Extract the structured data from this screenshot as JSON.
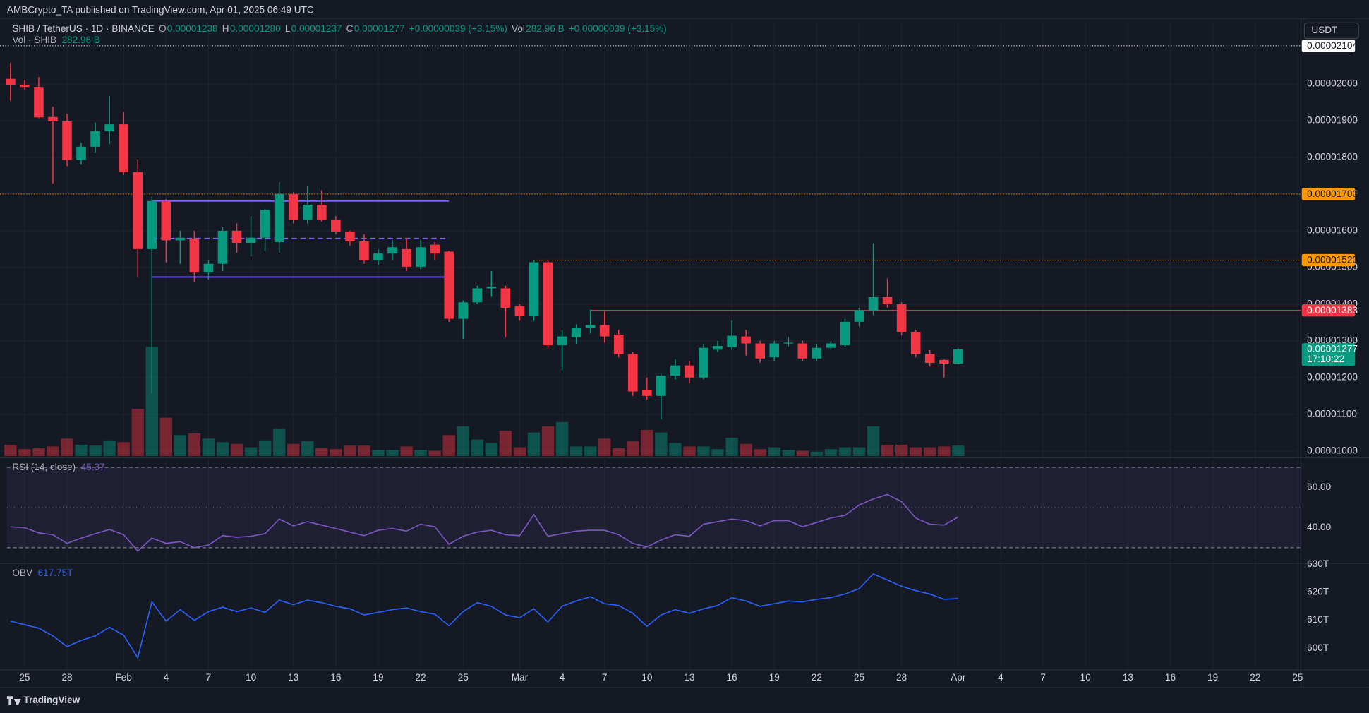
{
  "chart_data": {
    "type": "candlestick",
    "header": "AMBCrypto_TA published on TradingView.com, Apr 01, 2025 06:49 UTC",
    "legend": {
      "name": "SHIB / TetherUS · 1D · BINANCE",
      "parts": [
        {
          "k": "O",
          "v": "0.00001238"
        },
        {
          "k": "H",
          "v": "0.00001280"
        },
        {
          "k": "L",
          "v": "0.00001237"
        },
        {
          "k": "C",
          "v": "0.00001277"
        },
        {
          "v": "+0.00000039 (+3.15%)"
        },
        {
          "k": "Vol",
          "v": "282.96 B"
        },
        {
          "v": "+0.00000039 (+3.15%)"
        }
      ]
    },
    "currency": "USDT",
    "brand": "TradingView",
    "up_color": "#089981",
    "down_color": "#f23645",
    "x": [
      "Jan 24",
      "Jan 25",
      "Jan 26",
      "Jan 27",
      "Jan 28",
      "Jan 29",
      "Jan 30",
      "Jan 31",
      "Feb 1",
      "Feb 2",
      "Feb 3",
      "Feb 4",
      "Feb 5",
      "Feb 6",
      "Feb 7",
      "Feb 8",
      "Feb 9",
      "Feb 10",
      "Feb 11",
      "Feb 12",
      "Feb 13",
      "Feb 14",
      "Feb 15",
      "Feb 16",
      "Feb 17",
      "Feb 18",
      "Feb 19",
      "Feb 20",
      "Feb 21",
      "Feb 22",
      "Feb 23",
      "Feb 24",
      "Feb 25",
      "Feb 26",
      "Feb 27",
      "Feb 28",
      "Mar 1",
      "Mar 2",
      "Mar 3",
      "Mar 4",
      "Mar 5",
      "Mar 6",
      "Mar 7",
      "Mar 8",
      "Mar 9",
      "Mar 10",
      "Mar 11",
      "Mar 12",
      "Mar 13",
      "Mar 14",
      "Mar 15",
      "Mar 16",
      "Mar 17",
      "Mar 18",
      "Mar 19",
      "Mar 20",
      "Mar 21",
      "Mar 22",
      "Mar 23",
      "Mar 24",
      "Mar 25",
      "Mar 26",
      "Mar 27",
      "Mar 28",
      "Mar 29",
      "Mar 30",
      "Mar 31",
      "Apr 1"
    ],
    "open": [
      2.014e-05,
      1.998e-05,
      1.992e-05,
      1.91e-05,
      1.898e-05,
      1.793e-05,
      1.829e-05,
      1.871e-05,
      1.89e-05,
      1.76e-05,
      1.55e-05,
      1.681e-05,
      1.574e-05,
      1.579e-05,
      1.486e-05,
      1.51e-05,
      1.6e-05,
      1.567e-05,
      1.581e-05,
      1.569e-05,
      1.7e-05,
      1.629e-05,
      1.671e-05,
      1.629e-05,
      1.598e-05,
      1.571e-05,
      1.519e-05,
      1.538e-05,
      1.55e-05,
      1.502e-05,
      1.562e-05,
      1.543e-05,
      1.36e-05,
      1.405e-05,
      1.443e-05,
      1.443e-05,
      1.395e-05,
      1.367e-05,
      1.514e-05,
      1.288e-05,
      1.31e-05,
      1.336e-05,
      1.343e-05,
      1.317e-05,
      1.264e-05,
      1.167e-05,
      1.15e-05,
      1.205e-05,
      1.233e-05,
      1.2e-05,
      1.276e-05,
      1.283e-05,
      1.312e-05,
      1.293e-05,
      1.255e-05,
      1.293e-05,
      1.293e-05,
      1.252e-05,
      1.281e-05,
      1.288e-05,
      1.352e-05,
      1.383e-05,
      1.419e-05,
      1.4e-05,
      1.324e-05,
      1.264e-05,
      1.248e-05,
      1.238e-05
    ],
    "high": [
      2.057e-05,
      2.01e-05,
      2.019e-05,
      1.938e-05,
      1.919e-05,
      1.84e-05,
      1.895e-05,
      1.967e-05,
      1.924e-05,
      1.795e-05,
      1.693e-05,
      1.686e-05,
      1.6e-05,
      1.6e-05,
      1.52e-05,
      1.61e-05,
      1.62e-05,
      1.64e-05,
      1.66e-05,
      1.733e-05,
      1.705e-05,
      1.721e-05,
      1.71e-05,
      1.64e-05,
      1.6e-05,
      1.59e-05,
      1.55e-05,
      1.575e-05,
      1.58e-05,
      1.575e-05,
      1.57e-05,
      1.545e-05,
      1.41e-05,
      1.45e-05,
      1.49e-05,
      1.45e-05,
      1.4e-05,
      1.52e-05,
      1.52e-05,
      1.33e-05,
      1.345e-05,
      1.385e-05,
      1.38e-05,
      1.33e-05,
      1.27e-05,
      1.2e-05,
      1.21e-05,
      1.25e-05,
      1.245e-05,
      1.29e-05,
      1.3e-05,
      1.355e-05,
      1.33e-05,
      1.3e-05,
      1.3e-05,
      1.31e-05,
      1.3e-05,
      1.29e-05,
      1.3e-05,
      1.36e-05,
      1.39e-05,
      1.566e-05,
      1.47e-05,
      1.405e-05,
      1.33e-05,
      1.275e-05,
      1.25e-05,
      1.28e-05
    ],
    "low": [
      1.955e-05,
      1.985e-05,
      1.907e-05,
      1.729e-05,
      1.776e-05,
      1.78e-05,
      1.812e-05,
      1.836e-05,
      1.752e-05,
      1.474e-05,
      1.157e-05,
      1.514e-05,
      1.51e-05,
      1.46e-05,
      1.467e-05,
      1.49e-05,
      1.54e-05,
      1.53e-05,
      1.545e-05,
      1.54e-05,
      1.62e-05,
      1.62e-05,
      1.625e-05,
      1.59e-05,
      1.56e-05,
      1.51e-05,
      1.505e-05,
      1.52e-05,
      1.49e-05,
      1.495e-05,
      1.52e-05,
      1.352e-05,
      1.305e-05,
      1.4e-05,
      1.42e-05,
      1.31e-05,
      1.355e-05,
      1.355e-05,
      1.28e-05,
      1.22e-05,
      1.29e-05,
      1.32e-05,
      1.295e-05,
      1.255e-05,
      1.15e-05,
      1.14e-05,
      1.086e-05,
      1.195e-05,
      1.185e-05,
      1.195e-05,
      1.27e-05,
      1.275e-05,
      1.26e-05,
      1.24e-05,
      1.245e-05,
      1.285e-05,
      1.245e-05,
      1.245e-05,
      1.275e-05,
      1.285e-05,
      1.34e-05,
      1.37e-05,
      1.39e-05,
      1.315e-05,
      1.255e-05,
      1.23e-05,
      1.2e-05,
      1.237e-05
    ],
    "close": [
      1.998e-05,
      1.992e-05,
      1.909e-05,
      1.898e-05,
      1.793e-05,
      1.829e-05,
      1.871e-05,
      1.89e-05,
      1.76e-05,
      1.55e-05,
      1.681e-05,
      1.574e-05,
      1.581e-05,
      1.486e-05,
      1.51e-05,
      1.6e-05,
      1.567e-05,
      1.581e-05,
      1.657e-05,
      1.7e-05,
      1.629e-05,
      1.671e-05,
      1.629e-05,
      1.598e-05,
      1.571e-05,
      1.519e-05,
      1.538e-05,
      1.555e-05,
      1.502e-05,
      1.555e-05,
      1.538e-05,
      1.36e-05,
      1.405e-05,
      1.443e-05,
      1.448e-05,
      1.39e-05,
      1.367e-05,
      1.514e-05,
      1.288e-05,
      1.312e-05,
      1.336e-05,
      1.343e-05,
      1.312e-05,
      1.264e-05,
      1.162e-05,
      1.15e-05,
      1.205e-05,
      1.233e-05,
      1.2e-05,
      1.281e-05,
      1.286e-05,
      1.314e-05,
      1.293e-05,
      1.252e-05,
      1.293e-05,
      1.295e-05,
      1.252e-05,
      1.281e-05,
      1.293e-05,
      1.352e-05,
      1.383e-05,
      1.419e-05,
      1.4e-05,
      1.324e-05,
      1.264e-05,
      1.24e-05,
      1.238e-05,
      1.277e-05
    ],
    "xlim": [
      -0.74,
      91.23
    ],
    "xticks": [
      {
        "value": 1,
        "label": "25"
      },
      {
        "value": 4,
        "label": "28"
      },
      {
        "value": 8,
        "label": "Feb"
      },
      {
        "value": 11,
        "label": "4"
      },
      {
        "value": 14,
        "label": "7"
      },
      {
        "value": 17,
        "label": "10"
      },
      {
        "value": 20,
        "label": "13"
      },
      {
        "value": 23,
        "label": "16"
      },
      {
        "value": 26,
        "label": "19"
      },
      {
        "value": 29,
        "label": "22"
      },
      {
        "value": 32,
        "label": "25"
      },
      {
        "value": 36,
        "label": "Mar"
      },
      {
        "value": 39,
        "label": "4"
      },
      {
        "value": 42,
        "label": "7"
      },
      {
        "value": 45,
        "label": "10"
      },
      {
        "value": 48,
        "label": "13"
      },
      {
        "value": 51,
        "label": "16"
      },
      {
        "value": 54,
        "label": "19"
      },
      {
        "value": 57,
        "label": "22"
      },
      {
        "value": 60,
        "label": "25"
      },
      {
        "value": 63,
        "label": "28"
      },
      {
        "value": 67,
        "label": "Apr"
      },
      {
        "value": 70,
        "label": "4"
      },
      {
        "value": 73,
        "label": "7"
      },
      {
        "value": 76,
        "label": "10"
      },
      {
        "value": 79,
        "label": "13"
      },
      {
        "value": 82,
        "label": "16"
      },
      {
        "value": 85,
        "label": "19"
      },
      {
        "value": 88,
        "label": "22"
      },
      {
        "value": 91,
        "label": "25"
      }
    ],
    "ylim": [
      9.86e-06,
      2.169e-05
    ],
    "yticks": [
      {
        "value": 1e-05,
        "label": "0.00001000"
      },
      {
        "value": 1.1e-05,
        "label": "0.00001100"
      },
      {
        "value": 1.2e-05,
        "label": "0.00001200"
      },
      {
        "value": 1.3e-05,
        "label": "0.00001300"
      },
      {
        "value": 1.4e-05,
        "label": "0.00001400"
      },
      {
        "value": 1.5e-05,
        "label": "0.00001500"
      },
      {
        "value": 1.6e-05,
        "label": "0.00001600"
      },
      {
        "value": 1.7e-05,
        "label": "0.00001700"
      },
      {
        "value": 1.8e-05,
        "label": "0.00001800"
      },
      {
        "value": 1.9e-05,
        "label": "0.00001900"
      },
      {
        "value": 2e-05,
        "label": "0.00002000"
      }
    ],
    "levels": [
      {
        "value": 2.104e-05,
        "label": "0.00002104",
        "color": "#ffffff",
        "text_color": "#131722",
        "style": "dotted"
      },
      {
        "value": 1.7e-05,
        "label": "0.00001700",
        "color": "#ff9800",
        "text_color": "#131722",
        "style": "dotted"
      },
      {
        "value": 1.52e-05,
        "label": "0.00001520",
        "color": "#ff9800",
        "text_color": "#131722",
        "style": "dotted",
        "from": "Mar 2"
      },
      {
        "value": 1.383e-05,
        "label": "0.00001383",
        "color": "#f23645",
        "text_color": "#ffffff",
        "style": "solid",
        "from": "Mar 6"
      }
    ],
    "range_box": {
      "top": 1.681e-05,
      "mid": 1.579e-05,
      "bottom": 1.474e-05,
      "from": "Feb 3",
      "to": "Feb 24",
      "color": "#7b61ff"
    },
    "last": {
      "value": 1.277e-05,
      "label": "0.00001277",
      "countdown": "17:10:22",
      "color": "#089981"
    },
    "volume": {
      "name": "Vol · SHIB",
      "label": "282.96 B",
      "lim": [
        0,
        11719
      ],
      "values": [
        307,
        189,
        212,
        259,
        472,
        307,
        283,
        424,
        377,
        1273,
        2948,
        1038,
        566,
        613,
        472,
        377,
        330,
        236,
        424,
        731,
        330,
        401,
        212,
        189,
        283,
        283,
        165,
        165,
        259,
        165,
        141,
        566,
        802,
        448,
        354,
        684,
        236,
        637,
        802,
        920,
        259,
        259,
        472,
        212,
        401,
        707,
        637,
        354,
        259,
        259,
        189,
        495,
        330,
        189,
        236,
        165,
        141,
        118,
        189,
        236,
        236,
        802,
        307,
        307,
        236,
        236,
        259,
        282.96
      ]
    },
    "rsi": {
      "name": "RSI (14, close)",
      "color": "#7e57c2",
      "ylim": [
        23,
        73.5
      ],
      "yticks": [
        {
          "value": 40,
          "label": "40.00"
        },
        {
          "value": 60,
          "label": "60.00"
        }
      ],
      "levels": [
        70,
        50,
        30
      ],
      "values": [
        40.4,
        40,
        37.4,
        36.5,
        32.2,
        34.8,
        37,
        39.1,
        36.5,
        28.3,
        34.8,
        32.2,
        33,
        30,
        31.3,
        36,
        35.2,
        35.7,
        37,
        44.3,
        40.9,
        43,
        41.3,
        39.6,
        37.8,
        36,
        38.7,
        39.6,
        38.3,
        41.7,
        40.4,
        31.7,
        35.7,
        37.8,
        38.7,
        36.5,
        36,
        46.5,
        35.7,
        37,
        38.3,
        38.7,
        38.7,
        36.5,
        32.2,
        30.4,
        33.9,
        36.5,
        35.7,
        41.7,
        43,
        44.3,
        43.5,
        40.9,
        43.5,
        43.5,
        40.4,
        42.6,
        44.8,
        46.1,
        51.3,
        54.3,
        56.5,
        53,
        44.8,
        41.7,
        41.3,
        45.37
      ]
    },
    "obv": {
      "name": "OBV",
      "color": "#2962ff",
      "ylim": [
        592.5,
        630
      ],
      "value_label": "617.75T",
      "yticks": [
        {
          "value": 600,
          "label": "600T"
        },
        {
          "value": 610,
          "label": "610T"
        },
        {
          "value": 620,
          "label": "620T"
        },
        {
          "value": 630,
          "label": "630T"
        }
      ],
      "values": [
        609.7,
        608.4,
        607.2,
        604.4,
        600.6,
        602.8,
        604.4,
        607.5,
        604.7,
        596.6,
        616.6,
        609.7,
        613.8,
        610,
        613.1,
        614.7,
        613.1,
        614.4,
        612.8,
        617.2,
        615.6,
        617.2,
        616.3,
        615,
        614.1,
        611.9,
        612.8,
        613.8,
        614.4,
        613.1,
        612.2,
        608.1,
        613.1,
        616.3,
        615,
        611.9,
        610.9,
        614.1,
        609.4,
        615,
        616.9,
        618.4,
        615.9,
        615.3,
        612.5,
        607.8,
        611.9,
        613.8,
        612.5,
        614.1,
        615.3,
        618.1,
        616.9,
        615,
        615.9,
        616.9,
        616.6,
        617.5,
        618.1,
        619.4,
        621.3,
        626.6,
        624.4,
        622.2,
        620.6,
        619.4,
        617.5,
        617.75
      ]
    }
  }
}
